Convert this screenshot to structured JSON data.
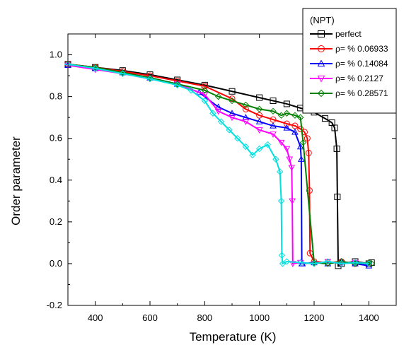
{
  "chart_data": {
    "type": "line",
    "title": "",
    "xlabel": "Temperature (K)",
    "ylabel": "Order parameter",
    "xlim": [
      300,
      1500
    ],
    "ylim": [
      -0.2,
      1.1
    ],
    "xticks": [
      400,
      600,
      800,
      1000,
      1200,
      1400
    ],
    "yticks": [
      -0.2,
      0.0,
      0.2,
      0.4,
      0.6,
      0.8,
      1.0
    ],
    "xtick_labels": [
      "400",
      "600",
      "800",
      "1000",
      "1200",
      "1400"
    ],
    "ytick_labels": [
      "-0.2",
      "0.0",
      "0.2",
      "0.4",
      "0.6",
      "0.8",
      "1.0"
    ],
    "grid": false,
    "legend": {
      "placement": "top-right",
      "title": "(NPT)"
    },
    "series": [
      {
        "name": "perfect",
        "color": "#000000",
        "marker": "square",
        "x": [
          300,
          400,
          500,
          600,
          700,
          800,
          900,
          1000,
          1050,
          1100,
          1150,
          1200,
          1240,
          1265,
          1275,
          1283,
          1285,
          1288,
          1300,
          1350,
          1400,
          1410
        ],
        "y": [
          0.955,
          0.94,
          0.925,
          0.905,
          0.88,
          0.855,
          0.825,
          0.795,
          0.78,
          0.765,
          0.745,
          0.725,
          0.695,
          0.675,
          0.65,
          0.55,
          0.32,
          -0.01,
          0.0,
          0.01,
          0.0,
          0.005
        ]
      },
      {
        "name": "ρ= % 0.06933",
        "color": "#ff0000",
        "marker": "circle",
        "x": [
          300,
          400,
          500,
          600,
          700,
          800,
          900,
          950,
          1000,
          1050,
          1100,
          1130,
          1150,
          1165,
          1175,
          1180,
          1183,
          1185,
          1200,
          1250,
          1300,
          1350,
          1400
        ],
        "y": [
          0.955,
          0.94,
          0.92,
          0.9,
          0.875,
          0.85,
          0.79,
          0.74,
          0.71,
          0.69,
          0.67,
          0.66,
          0.645,
          0.63,
          0.6,
          0.53,
          0.35,
          0.05,
          0.01,
          0.005,
          0.01,
          0.0,
          0.0
        ]
      },
      {
        "name": "ρ= % 0.14084",
        "color": "#0000ff",
        "marker": "triangle-up",
        "x": [
          300,
          400,
          500,
          600,
          700,
          780,
          850,
          900,
          950,
          1000,
          1050,
          1100,
          1130,
          1150,
          1153,
          1155,
          1157,
          1200,
          1250,
          1300,
          1350,
          1400
        ],
        "y": [
          0.95,
          0.935,
          0.915,
          0.89,
          0.86,
          0.82,
          0.75,
          0.72,
          0.7,
          0.68,
          0.66,
          0.65,
          0.63,
          0.56,
          0.5,
          0.0,
          0.0,
          0.005,
          0.0,
          0.01,
          0.0,
          -0.01
        ]
      },
      {
        "name": "ρ= % 0.2127",
        "color": "#ff00ff",
        "marker": "triangle-down",
        "x": [
          300,
          400,
          500,
          600,
          700,
          800,
          850,
          900,
          950,
          1000,
          1050,
          1080,
          1100,
          1110,
          1118,
          1120,
          1122,
          1150,
          1200,
          1250,
          1300,
          1350,
          1400
        ],
        "y": [
          0.95,
          0.93,
          0.91,
          0.885,
          0.86,
          0.81,
          0.73,
          0.7,
          0.68,
          0.64,
          0.62,
          0.58,
          0.55,
          0.5,
          0.46,
          0.3,
          0.0,
          0.005,
          0.0,
          0.01,
          0.0,
          0.005,
          0.0
        ]
      },
      {
        "name": "ρ= % 0.28571",
        "color": "#008000",
        "marker": "diamond",
        "x": [
          300,
          400,
          500,
          600,
          700,
          800,
          850,
          900,
          950,
          1000,
          1050,
          1080,
          1100,
          1130,
          1150,
          1160,
          1200,
          1250,
          1300,
          1350,
          1400,
          1410
        ],
        "y": [
          0.955,
          0.94,
          0.915,
          0.89,
          0.86,
          0.83,
          0.8,
          0.78,
          0.76,
          0.74,
          0.73,
          0.71,
          0.72,
          0.71,
          0.7,
          0.58,
          0.005,
          0.0,
          0.01,
          0.0,
          0.005,
          0.0
        ]
      },
      {
        "name": "",
        "color": "#00e0e0",
        "marker": "diamond",
        "x": [
          300,
          400,
          500,
          600,
          700,
          750,
          800,
          830,
          860,
          890,
          920,
          950,
          975,
          1000,
          1030,
          1060,
          1075,
          1080,
          1082,
          1085,
          1100,
          1150,
          1200,
          1250,
          1300,
          1350,
          1400
        ],
        "y": [
          0.955,
          0.935,
          0.91,
          0.885,
          0.855,
          0.83,
          0.78,
          0.72,
          0.68,
          0.64,
          0.6,
          0.56,
          0.52,
          0.55,
          0.57,
          0.5,
          0.44,
          0.3,
          0.04,
          0.0,
          0.01,
          0.005,
          0.0,
          0.01,
          0.0,
          0.005,
          0.0
        ]
      }
    ]
  }
}
